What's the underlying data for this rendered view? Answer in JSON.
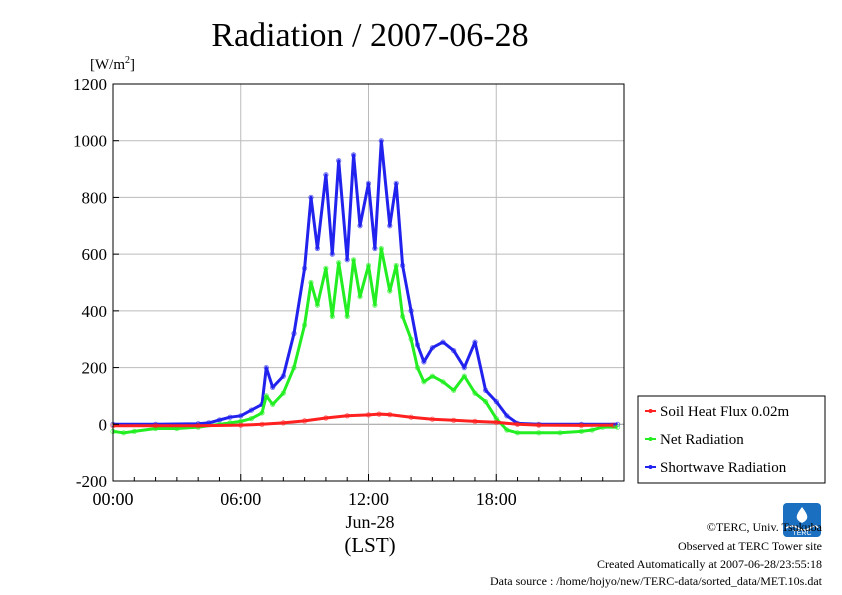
{
  "chart_data": {
    "type": "line",
    "title": "Radiation / 2007-06-28",
    "ylabel_unit": "[W/m",
    "ylabel_sup": "2",
    "ylabel_close": "]",
    "ylim": [
      -200,
      1200
    ],
    "yticks": [
      -200,
      0,
      200,
      400,
      600,
      800,
      1000,
      1200
    ],
    "xlim": [
      0,
      24
    ],
    "xticks": [
      {
        "x": 0,
        "label": "00:00"
      },
      {
        "x": 6,
        "label": "06:00"
      },
      {
        "x": 12,
        "label": "12:00"
      },
      {
        "x": 18,
        "label": "18:00"
      }
    ],
    "xdate_label": "Jun-28",
    "xunit_label": "(LST)",
    "grid": true,
    "legend_position": "right",
    "series": [
      {
        "name": "Soil Heat Flux 0.02m",
        "color": "#ff2020",
        "x": [
          0,
          2,
          4,
          6,
          7,
          8,
          9,
          10,
          11,
          12,
          12.5,
          13,
          14,
          15,
          16,
          17,
          18,
          19,
          20,
          22,
          23.5
        ],
        "y": [
          -5,
          -5,
          -5,
          -3,
          0,
          5,
          12,
          22,
          30,
          33,
          36,
          34,
          25,
          18,
          14,
          10,
          7,
          0,
          -3,
          -4,
          -3
        ]
      },
      {
        "name": "Net Radiation",
        "color": "#22ee22",
        "x": [
          0,
          0.5,
          1,
          2,
          3,
          4,
          5,
          5.5,
          6,
          6.5,
          7,
          7.2,
          7.5,
          8,
          8.5,
          9,
          9.3,
          9.6,
          10,
          10.3,
          10.6,
          11,
          11.3,
          11.6,
          12,
          12.3,
          12.6,
          13,
          13.3,
          13.6,
          14,
          14.3,
          14.6,
          15,
          15.5,
          16,
          16.5,
          17,
          17.5,
          18,
          18.5,
          19,
          20,
          21,
          22,
          22.5,
          23,
          23.7
        ],
        "y": [
          -25,
          -30,
          -25,
          -15,
          -15,
          -10,
          0,
          5,
          10,
          20,
          40,
          100,
          70,
          110,
          200,
          350,
          500,
          420,
          550,
          380,
          570,
          380,
          580,
          450,
          560,
          420,
          620,
          470,
          560,
          380,
          300,
          200,
          150,
          170,
          150,
          120,
          170,
          110,
          80,
          20,
          -20,
          -30,
          -30,
          -30,
          -25,
          -20,
          -10,
          -10
        ]
      },
      {
        "name": "Shortwave Radiation",
        "color": "#2222ee",
        "x": [
          0,
          2,
          4,
          4.5,
          5,
          5.5,
          6,
          6.5,
          7,
          7.2,
          7.5,
          8,
          8.5,
          9,
          9.3,
          9.6,
          10,
          10.3,
          10.6,
          11,
          11.3,
          11.6,
          12,
          12.3,
          12.6,
          13,
          13.3,
          13.6,
          14,
          14.3,
          14.6,
          15,
          15.5,
          16,
          16.5,
          17,
          17.5,
          18,
          18.5,
          19,
          20,
          22,
          23.7
        ],
        "y": [
          0,
          0,
          2,
          5,
          15,
          25,
          30,
          50,
          70,
          200,
          130,
          170,
          320,
          550,
          800,
          620,
          880,
          600,
          930,
          580,
          950,
          700,
          850,
          620,
          1000,
          700,
          850,
          560,
          400,
          280,
          220,
          270,
          290,
          260,
          200,
          290,
          120,
          80,
          30,
          3,
          0,
          0,
          0
        ]
      }
    ]
  },
  "footer": {
    "copyright": "©TERC, Univ. Tsukuba",
    "site": "Observed at TERC Tower site",
    "created": "Created Automatically at 2007-06-28/23:55:18",
    "source": "Data source : /home/hojyo/new/TERC-data/sorted_data/MET.10s.dat"
  },
  "logo_text": "TERC"
}
